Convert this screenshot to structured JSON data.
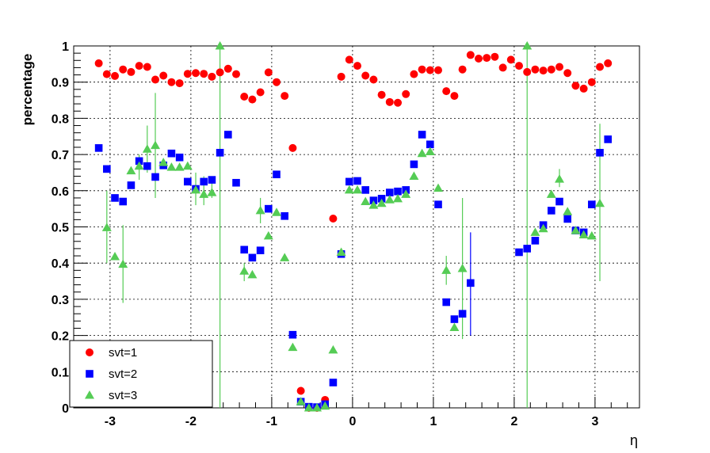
{
  "chart_data": {
    "type": "scatter",
    "title": "",
    "xlabel": "η",
    "ylabel": "percentage",
    "xlim": [
      -3.45,
      3.55
    ],
    "ylim": [
      0,
      1
    ],
    "x_ticks": [
      -3,
      -2,
      -1,
      0,
      1,
      2,
      3
    ],
    "x_tick_labels": [
      "-3",
      "-2",
      "-1",
      "0",
      "1",
      "2",
      "3"
    ],
    "y_ticks": [
      0,
      0.1,
      0.2,
      0.3,
      0.4,
      0.5,
      0.6,
      0.7,
      0.8,
      0.9,
      1
    ],
    "y_tick_labels": [
      "0",
      "0.1",
      "0.2",
      "0.3",
      "0.4",
      "0.5",
      "0.6",
      "0.7",
      "0.8",
      "0.9",
      "1"
    ],
    "grid": true,
    "legend": {
      "placement": "bottom-left",
      "entries": [
        "svt=1",
        "svt=2",
        "svt=3"
      ]
    },
    "series": [
      {
        "name": "svt=1",
        "marker": "circle",
        "color": "#ff0000",
        "points": [
          [
            -3.14,
            0.952
          ],
          [
            -3.04,
            0.922
          ],
          [
            -2.94,
            0.917
          ],
          [
            -2.84,
            0.935
          ],
          [
            -2.74,
            0.928
          ],
          [
            -2.64,
            0.945
          ],
          [
            -2.54,
            0.942
          ],
          [
            -2.44,
            0.907
          ],
          [
            -2.34,
            0.918
          ],
          [
            -2.24,
            0.9
          ],
          [
            -2.14,
            0.897
          ],
          [
            -2.04,
            0.923
          ],
          [
            -1.94,
            0.925
          ],
          [
            -1.84,
            0.923
          ],
          [
            -1.74,
            0.915
          ],
          [
            -1.64,
            0.927
          ],
          [
            -1.54,
            0.937
          ],
          [
            -1.44,
            0.922
          ],
          [
            -1.34,
            0.86
          ],
          [
            -1.24,
            0.852
          ],
          [
            -1.14,
            0.872
          ],
          [
            -1.04,
            0.927
          ],
          [
            -0.94,
            0.9
          ],
          [
            -0.84,
            0.862
          ],
          [
            -0.74,
            0.718
          ],
          [
            -0.64,
            0.047
          ],
          [
            -0.54,
            0.0
          ],
          [
            -0.44,
            0.0
          ],
          [
            -0.34,
            0.022
          ],
          [
            -0.24,
            0.523
          ],
          [
            -0.14,
            0.915
          ],
          [
            -0.04,
            0.962
          ],
          [
            0.06,
            0.945
          ],
          [
            0.16,
            0.918
          ],
          [
            0.26,
            0.907
          ],
          [
            0.36,
            0.865
          ],
          [
            0.46,
            0.845
          ],
          [
            0.56,
            0.843
          ],
          [
            0.66,
            0.867
          ],
          [
            0.76,
            0.922
          ],
          [
            0.86,
            0.935
          ],
          [
            0.96,
            0.933
          ],
          [
            1.06,
            0.933
          ],
          [
            1.16,
            0.875
          ],
          [
            1.26,
            0.862
          ],
          [
            1.36,
            0.935
          ],
          [
            1.46,
            0.975
          ],
          [
            1.56,
            0.965
          ],
          [
            1.66,
            0.967
          ],
          [
            1.76,
            0.97
          ],
          [
            1.86,
            0.94
          ],
          [
            1.96,
            0.962
          ],
          [
            2.06,
            0.945
          ],
          [
            2.16,
            0.928
          ],
          [
            2.26,
            0.935
          ],
          [
            2.36,
            0.932
          ],
          [
            2.46,
            0.935
          ],
          [
            2.56,
            0.942
          ],
          [
            2.66,
            0.925
          ],
          [
            2.76,
            0.89
          ],
          [
            2.86,
            0.882
          ],
          [
            2.96,
            0.9
          ],
          [
            3.06,
            0.942
          ],
          [
            3.16,
            0.952
          ]
        ],
        "errors": []
      },
      {
        "name": "svt=2",
        "marker": "square",
        "color": "#0000ff",
        "points": [
          [
            -3.14,
            0.718
          ],
          [
            -3.04,
            0.66
          ],
          [
            -2.94,
            0.58
          ],
          [
            -2.84,
            0.57
          ],
          [
            -2.74,
            0.615
          ],
          [
            -2.64,
            0.682
          ],
          [
            -2.54,
            0.668
          ],
          [
            -2.44,
            0.638
          ],
          [
            -2.34,
            0.67
          ],
          [
            -2.24,
            0.703
          ],
          [
            -2.14,
            0.692
          ],
          [
            -2.04,
            0.625
          ],
          [
            -1.94,
            0.605
          ],
          [
            -1.84,
            0.625
          ],
          [
            -1.74,
            0.63
          ],
          [
            -1.64,
            0.705
          ],
          [
            -1.54,
            0.755
          ],
          [
            -1.44,
            0.622
          ],
          [
            -1.34,
            0.437
          ],
          [
            -1.24,
            0.415
          ],
          [
            -1.14,
            0.435
          ],
          [
            -1.04,
            0.55
          ],
          [
            -0.94,
            0.645
          ],
          [
            -0.84,
            0.53
          ],
          [
            -0.74,
            0.202
          ],
          [
            -0.64,
            0.017
          ],
          [
            -0.54,
            0.003
          ],
          [
            -0.44,
            0.002
          ],
          [
            -0.34,
            0.01
          ],
          [
            -0.24,
            0.07
          ],
          [
            -0.14,
            0.425
          ],
          [
            -0.04,
            0.625
          ],
          [
            0.06,
            0.627
          ],
          [
            0.16,
            0.602
          ],
          [
            0.26,
            0.573
          ],
          [
            0.36,
            0.578
          ],
          [
            0.46,
            0.595
          ],
          [
            0.56,
            0.598
          ],
          [
            0.66,
            0.602
          ],
          [
            0.76,
            0.673
          ],
          [
            0.86,
            0.755
          ],
          [
            0.96,
            0.728
          ],
          [
            1.06,
            0.562
          ],
          [
            1.16,
            0.292
          ],
          [
            1.26,
            0.245
          ],
          [
            1.36,
            0.26
          ],
          [
            1.46,
            0.345
          ],
          [
            2.06,
            0.43
          ],
          [
            2.16,
            0.44
          ],
          [
            2.26,
            0.462
          ],
          [
            2.36,
            0.505
          ],
          [
            2.46,
            0.545
          ],
          [
            2.56,
            0.57
          ],
          [
            2.66,
            0.522
          ],
          [
            2.76,
            0.49
          ],
          [
            2.86,
            0.485
          ],
          [
            2.96,
            0.562
          ],
          [
            3.06,
            0.705
          ],
          [
            3.16,
            0.742
          ]
        ],
        "errors": [
          [
            1.46,
            0.2,
            0.485
          ]
        ]
      },
      {
        "name": "svt=3",
        "marker": "triangle",
        "color": "#55cc55",
        "points": [
          [
            -3.04,
            0.498
          ],
          [
            -2.94,
            0.418
          ],
          [
            -2.84,
            0.397
          ],
          [
            -2.74,
            0.655
          ],
          [
            -2.64,
            0.668
          ],
          [
            -2.54,
            0.715
          ],
          [
            -2.44,
            0.725
          ],
          [
            -2.34,
            0.678
          ],
          [
            -2.24,
            0.665
          ],
          [
            -2.14,
            0.665
          ],
          [
            -2.04,
            0.668
          ],
          [
            -1.94,
            0.602
          ],
          [
            -1.84,
            0.59
          ],
          [
            -1.74,
            0.595
          ],
          [
            -1.64,
            1.0
          ],
          [
            -1.34,
            0.378
          ],
          [
            -1.24,
            0.368
          ],
          [
            -1.14,
            0.545
          ],
          [
            -1.04,
            0.475
          ],
          [
            -0.94,
            0.54
          ],
          [
            -0.84,
            0.415
          ],
          [
            -0.74,
            0.167
          ],
          [
            -0.64,
            0.017
          ],
          [
            -0.54,
            0.0
          ],
          [
            -0.44,
            0.0
          ],
          [
            -0.34,
            0.005
          ],
          [
            -0.24,
            0.16
          ],
          [
            -0.14,
            0.43
          ],
          [
            -0.04,
            0.602
          ],
          [
            0.06,
            0.602
          ],
          [
            0.16,
            0.57
          ],
          [
            0.26,
            0.56
          ],
          [
            0.36,
            0.565
          ],
          [
            0.46,
            0.575
          ],
          [
            0.56,
            0.578
          ],
          [
            0.66,
            0.59
          ],
          [
            0.76,
            0.64
          ],
          [
            0.86,
            0.703
          ],
          [
            0.96,
            0.708
          ],
          [
            1.06,
            0.607
          ],
          [
            1.16,
            0.38
          ],
          [
            1.26,
            0.222
          ],
          [
            1.36,
            0.385
          ],
          [
            2.16,
            1.0
          ],
          [
            2.26,
            0.485
          ],
          [
            2.36,
            0.495
          ],
          [
            2.46,
            0.59
          ],
          [
            2.56,
            0.632
          ],
          [
            2.66,
            0.542
          ],
          [
            2.76,
            0.49
          ],
          [
            2.86,
            0.478
          ],
          [
            2.96,
            0.475
          ],
          [
            3.06,
            0.565
          ]
        ],
        "errors": [
          [
            -3.04,
            0.4,
            0.6
          ],
          [
            -2.84,
            0.29,
            0.505
          ],
          [
            -2.64,
            0.63,
            0.7
          ],
          [
            -2.54,
            0.65,
            0.78
          ],
          [
            -2.44,
            0.58,
            0.87
          ],
          [
            -1.94,
            0.56,
            0.65
          ],
          [
            -1.84,
            0.56,
            0.64
          ],
          [
            -1.74,
            0.58,
            0.64
          ],
          [
            -1.64,
            0.0,
            1.0
          ],
          [
            -1.34,
            0.35,
            0.4
          ],
          [
            -1.14,
            0.51,
            0.58
          ],
          [
            1.16,
            0.34,
            0.42
          ],
          [
            1.36,
            0.19,
            0.58
          ],
          [
            2.16,
            0.0,
            1.0
          ],
          [
            2.56,
            0.61,
            0.66
          ],
          [
            3.06,
            0.35,
            0.785
          ]
        ]
      }
    ]
  }
}
